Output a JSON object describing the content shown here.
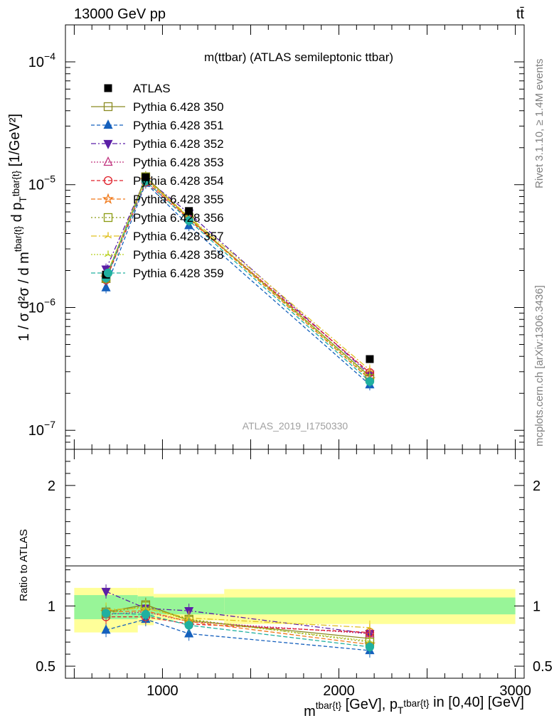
{
  "header": {
    "left": "13000 GeV pp",
    "right": "tt̄",
    "side_top": "Rivet 3.1.10, ≥ 1.4M events",
    "side_bottom": "mcplots.cern.ch [arXiv:1306.3436]",
    "watermark": "ATLAS_2019_I1750330"
  },
  "chart_data": [
    {
      "type": "line",
      "title": "m(ttbar) (ATLAS semileptonic ttbar)",
      "xlabel": "m^{tbar{t}} [GeV], p_T^{tbar{t}} in [0,40] [GeV]",
      "ylabel": "1 / σ d²σ / d m^{tbar{t}} d p_T^{tbar{t}} [1/GeV²]",
      "yscale": "log",
      "xlim": [
        450,
        3050
      ],
      "ylim": [
        7e-08,
        0.0002
      ],
      "y_tick_labels": [
        "10^{-7}",
        "10^{-6}",
        "10^{-5}",
        "10^{-4}"
      ],
      "x_bins": [
        [
          500,
          860
        ],
        [
          860,
          950
        ],
        [
          950,
          1350
        ],
        [
          1350,
          3000
        ]
      ],
      "x": [
        680,
        905,
        1150,
        2175
      ],
      "legend_position": "upper-left",
      "data": {
        "name": "ATLAS",
        "values": [
          1.85e-06,
          1.15e-05,
          6.1e-06,
          3.8e-07
        ]
      },
      "series": [
        {
          "name": "Pythia 6.428 350",
          "color": "#8a8a22",
          "marker": "square-open",
          "values": [
            1.75e-06,
            1.16e-05,
            5.35e-06,
            2.75e-07
          ]
        },
        {
          "name": "Pythia 6.428 351",
          "color": "#1560bd",
          "marker": "triangle-up",
          "values": [
            1.45e-06,
            1.03e-05,
            4.65e-06,
            2.35e-07
          ]
        },
        {
          "name": "Pythia 6.428 352",
          "color": "#5b1fa6",
          "marker": "triangle-down",
          "values": [
            2.05e-06,
            1.12e-05,
            5.85e-06,
            2.85e-07
          ]
        },
        {
          "name": "Pythia 6.428 353",
          "color": "#c0307c",
          "marker": "triangle-up-open",
          "values": [
            1.7e-06,
            1.1e-05,
            5.3e-06,
            2.95e-07
          ]
        },
        {
          "name": "Pythia 6.428 354",
          "color": "#e0202a",
          "marker": "circle-open",
          "values": [
            1.68e-06,
            1.05e-05,
            5.2e-06,
            2.95e-07
          ]
        },
        {
          "name": "Pythia 6.428 355",
          "color": "#f07818",
          "marker": "star-open",
          "values": [
            1.75e-06,
            1.1e-05,
            5.3e-06,
            2.6e-07
          ]
        },
        {
          "name": "Pythia 6.428 356",
          "color": "#8a9a10",
          "marker": "square-open",
          "values": [
            1.72e-06,
            1.15e-05,
            5.4e-06,
            2.65e-07
          ]
        },
        {
          "name": "Pythia 6.428 357",
          "color": "#e0c020",
          "marker": "tri",
          "values": [
            1.8e-06,
            1.12e-05,
            5.5e-06,
            3.1e-07
          ]
        },
        {
          "name": "Pythia 6.428 358",
          "color": "#b8d020",
          "marker": "tri",
          "values": [
            1.78e-06,
            1.13e-05,
            5.4e-06,
            2.7e-07
          ]
        },
        {
          "name": "Pythia 6.428 359",
          "color": "#20b0a0",
          "marker": "circle",
          "values": [
            1.74e-06,
            1.07e-05,
            5.1e-06,
            2.5e-07
          ]
        }
      ]
    },
    {
      "type": "line",
      "xlabel": "m^{tbar{t}} [GeV], p_T^{tbar{t}} in [0,40] [GeV]",
      "ylabel": "Ratio to ATLAS",
      "ylim": [
        0.4,
        2.3
      ],
      "x_tick_labels": [
        "1000",
        "2000",
        "3000"
      ],
      "y_tick_labels": [
        "0.5",
        "1",
        "2"
      ],
      "reference_line": 1,
      "uncertainty_bands": {
        "green": [
          [
            0.89,
            1.09
          ],
          [
            0.9,
            1.08
          ],
          [
            0.93,
            1.07
          ],
          [
            0.93,
            1.07
          ]
        ],
        "yellow": [
          [
            0.78,
            1.15
          ],
          [
            0.84,
            1.15
          ],
          [
            0.88,
            1.1
          ],
          [
            0.85,
            1.14
          ]
        ]
      },
      "x": [
        680,
        905,
        1150,
        2175
      ],
      "series": [
        {
          "name": "Pythia 6.428 350",
          "values": [
            0.95,
            1.01,
            0.88,
            0.73
          ]
        },
        {
          "name": "Pythia 6.428 351",
          "values": [
            0.8,
            0.89,
            0.77,
            0.63
          ]
        },
        {
          "name": "Pythia 6.428 352",
          "values": [
            1.12,
            0.98,
            0.96,
            0.77
          ]
        },
        {
          "name": "Pythia 6.428 353",
          "values": [
            0.93,
            0.95,
            0.87,
            0.77
          ]
        },
        {
          "name": "Pythia 6.428 354",
          "values": [
            0.91,
            0.91,
            0.85,
            0.78
          ]
        },
        {
          "name": "Pythia 6.428 355",
          "values": [
            0.95,
            0.96,
            0.87,
            0.68
          ]
        },
        {
          "name": "Pythia 6.428 356",
          "values": [
            0.94,
            1.0,
            0.89,
            0.7
          ]
        },
        {
          "name": "Pythia 6.428 357",
          "values": [
            0.97,
            0.98,
            0.9,
            0.82
          ]
        },
        {
          "name": "Pythia 6.428 358",
          "values": [
            0.96,
            0.99,
            0.88,
            0.71
          ]
        },
        {
          "name": "Pythia 6.428 359",
          "values": [
            0.94,
            0.93,
            0.84,
            0.66
          ]
        }
      ]
    }
  ]
}
